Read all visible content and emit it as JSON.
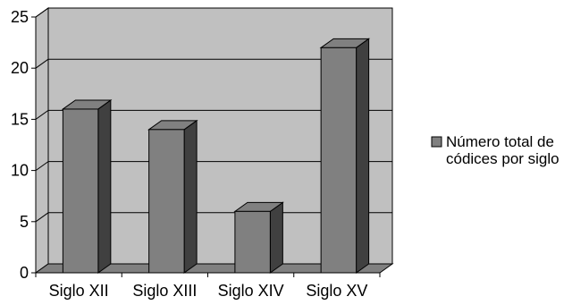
{
  "chart_data": {
    "type": "bar",
    "categories": [
      "Siglo XII",
      "Siglo XIII",
      "Siglo XIV",
      "Siglo XV"
    ],
    "series": [
      {
        "name": "Número total de códices por siglo",
        "values": [
          16,
          14,
          6,
          22
        ],
        "color": "#808080"
      }
    ],
    "title": "",
    "xlabel": "",
    "ylabel": "",
    "ylim": [
      0,
      25
    ],
    "yticks": [
      0,
      5,
      10,
      15,
      20,
      25
    ],
    "grid": true,
    "three_d": true,
    "legend_position": "right",
    "legend_lines": [
      "Número total de",
      "códices por siglo"
    ],
    "colors": {
      "wall": "#c0c0c0",
      "floor": "#808080",
      "gridline": "#000000",
      "bar_front": "#808080",
      "bar_side": "#404040",
      "bar_top": "#808080"
    }
  }
}
